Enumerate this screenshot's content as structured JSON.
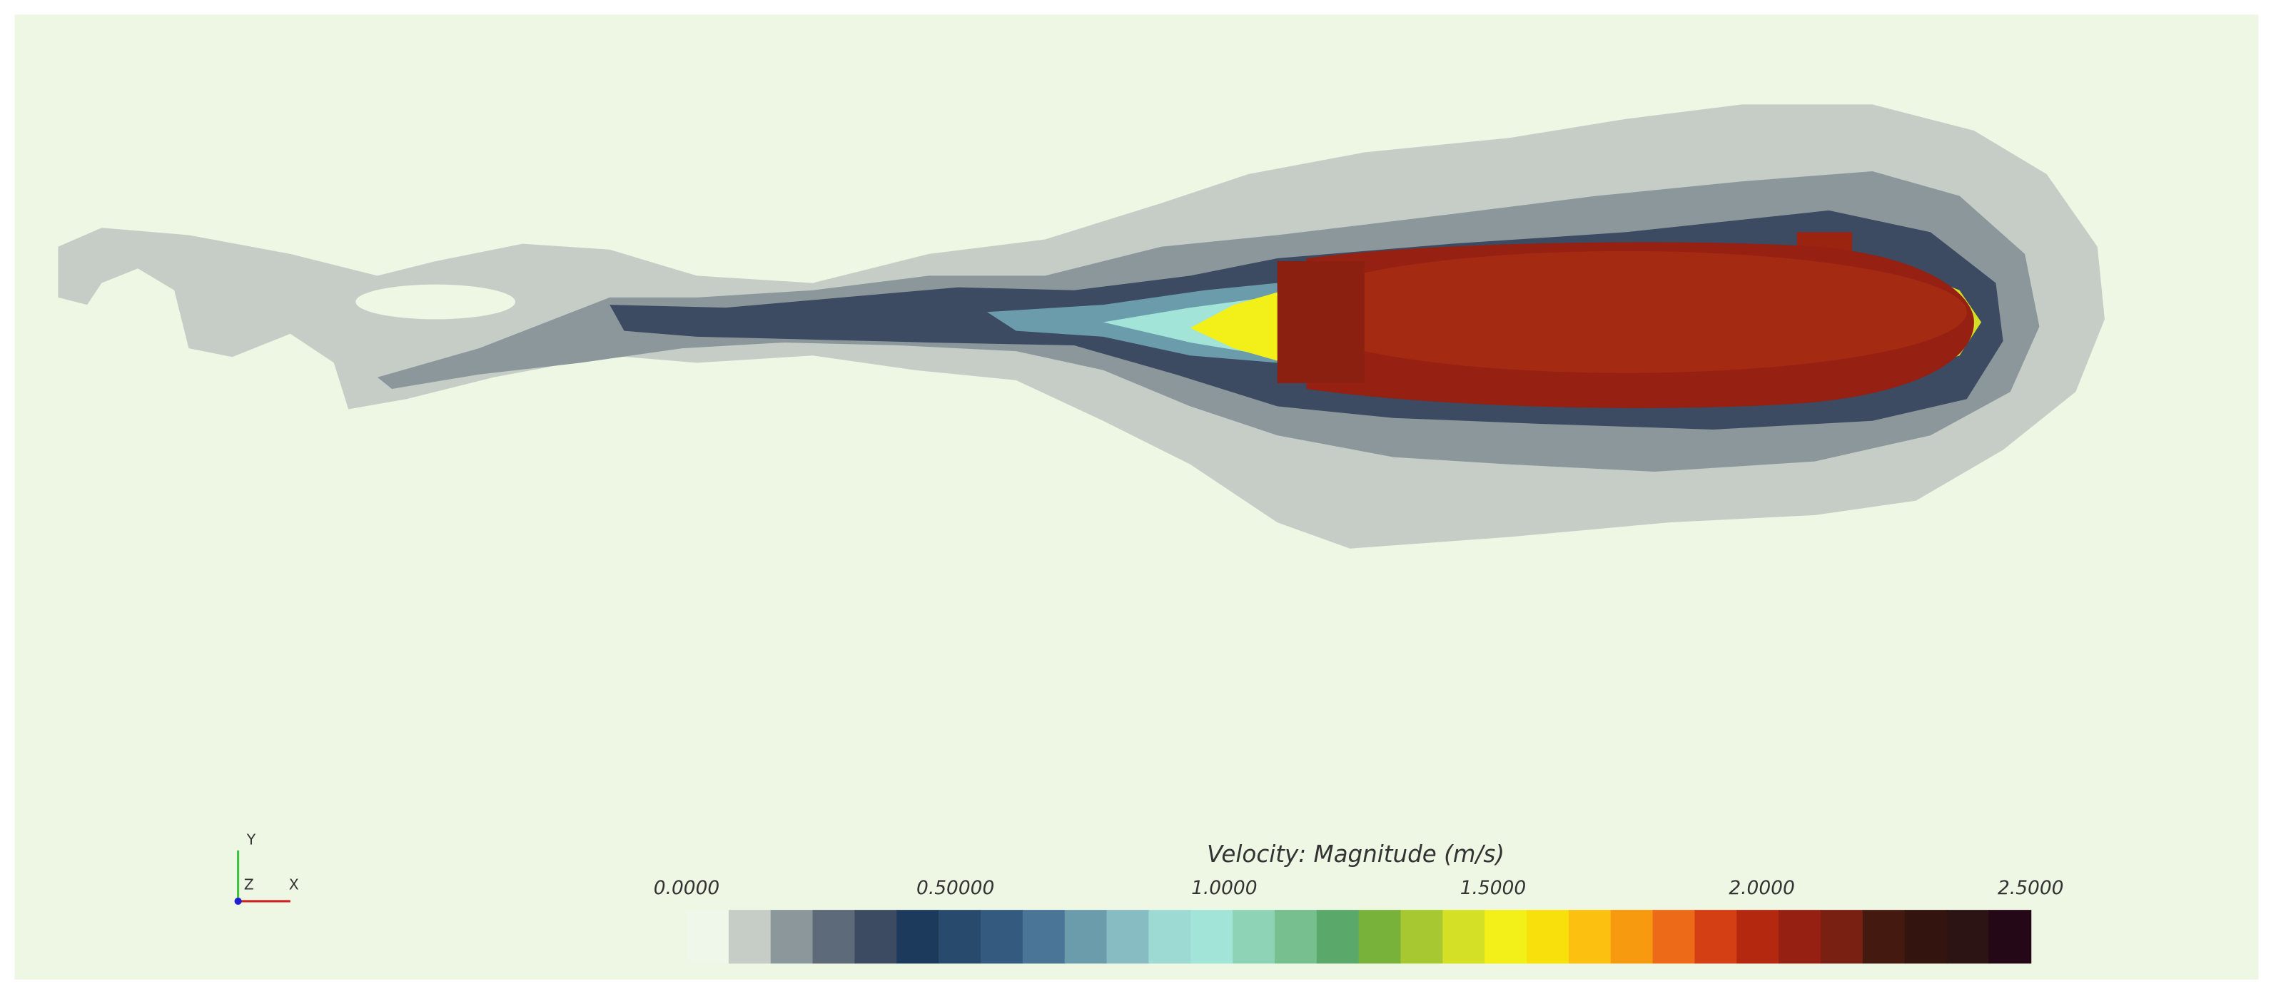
{
  "colorbar": {
    "title": "Velocity: Magnitude (m/s)",
    "range": [
      0,
      2.5
    ],
    "ticks": [
      {
        "value": 0,
        "label": "0.0000"
      },
      {
        "value": 0.5,
        "label": "0.50000"
      },
      {
        "value": 1,
        "label": "1.0000"
      },
      {
        "value": 1.5,
        "label": "1.5000"
      },
      {
        "value": 2,
        "label": "2.0000"
      },
      {
        "value": 2.5,
        "label": "2.5000"
      }
    ],
    "colors": [
      "#eef7ea",
      "#c5cdc6",
      "#8c979b",
      "#5c6a7a",
      "#3c4a62",
      "#1b3a5c",
      "#284a6c",
      "#355a80",
      "#4a7596",
      "#6b9cac",
      "#86bcc2",
      "#9ddad4",
      "#a2e4d8",
      "#8fd3b6",
      "#77bf8e",
      "#5aa86a",
      "#79b23a",
      "#a8c832",
      "#d4e026",
      "#f2f018",
      "#f8e00c",
      "#fcc010",
      "#f89a10",
      "#ec6a18",
      "#d44014",
      "#b42810",
      "#962012",
      "#7a2012",
      "#441a10",
      "#34140e",
      "#2c1414",
      "#240818"
    ]
  },
  "axes_triad": {
    "y": "Y",
    "z": "Z",
    "x": "X"
  }
}
